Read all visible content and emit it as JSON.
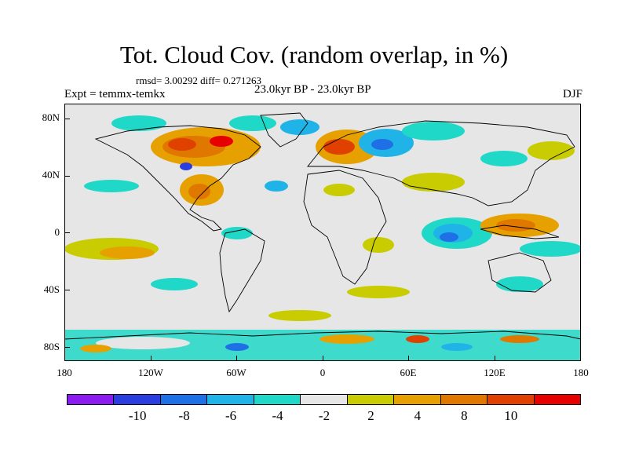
{
  "title": "Tot. Cloud Cov. (random overlap, in %)",
  "stats": "rmsd= 3.00292 diff= 0.271263",
  "experiment": "Expt = temmx-temkx",
  "period": "23.0kyr BP - 23.0kyr BP",
  "season": "DJF",
  "axes": {
    "lat_labels": [
      "80N",
      "40N",
      "0",
      "40S",
      "80S"
    ],
    "lon_labels": [
      "180",
      "120W",
      "60W",
      "0",
      "60E",
      "120E",
      "180"
    ]
  },
  "colorbar": {
    "colors": [
      "#8b1cf0",
      "#2a3ee0",
      "#1f6fe6",
      "#1fb3e8",
      "#20d8c8",
      "#e6e6e6",
      "#c8cc00",
      "#e6a100",
      "#e07800",
      "#e04000",
      "#e60000"
    ],
    "labels": [
      "-10",
      "-8",
      "-6",
      "-4",
      "-2",
      "2",
      "4",
      "8",
      "10"
    ]
  },
  "map_colors": {
    "neutral": "#e6e6e6",
    "coast": "#000000"
  }
}
